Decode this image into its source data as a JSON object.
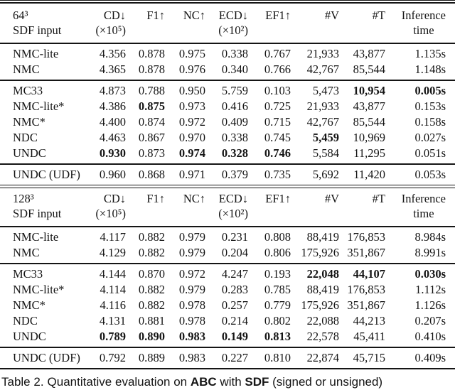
{
  "colors": {
    "background": "#ffffff",
    "text": "#141414",
    "rule": "#151515"
  },
  "tables": [
    {
      "name": "abc-sdf-64",
      "corner": {
        "resolution": "64³",
        "input": "SDF input"
      },
      "columns": [
        {
          "top": "CD↓",
          "sub": "(×10⁵)"
        },
        {
          "top": "F1↑",
          "sub": ""
        },
        {
          "top": "NC↑",
          "sub": ""
        },
        {
          "top": "ECD↓",
          "sub": "(×10²)"
        },
        {
          "top": "EF1↑",
          "sub": ""
        },
        {
          "top": "#V",
          "sub": ""
        },
        {
          "top": "#T",
          "sub": ""
        },
        {
          "top": "Inference",
          "sub": "time",
          "sub_center": true
        }
      ],
      "groups": [
        {
          "rows": [
            {
              "label": "NMC-lite",
              "values": [
                "4.356",
                "0.878",
                "0.975",
                "0.338",
                "0.767",
                "21,933",
                "43,877",
                "1.135s"
              ],
              "bold": []
            },
            {
              "label": "NMC",
              "values": [
                "4.365",
                "0.878",
                "0.976",
                "0.340",
                "0.766",
                "42,767",
                "85,544",
                "1.148s"
              ],
              "bold": []
            }
          ]
        },
        {
          "rows": [
            {
              "label": "MC33",
              "values": [
                "4.873",
                "0.788",
                "0.950",
                "5.759",
                "0.103",
                "5,473",
                "10,954",
                "0.005s"
              ],
              "bold": [
                6,
                7
              ]
            },
            {
              "label": "NMC-lite*",
              "values": [
                "4.386",
                "0.875",
                "0.973",
                "0.416",
                "0.725",
                "21,933",
                "43,877",
                "0.153s"
              ],
              "bold": [
                1
              ]
            },
            {
              "label": "NMC*",
              "values": [
                "4.400",
                "0.874",
                "0.972",
                "0.409",
                "0.715",
                "42,767",
                "85,544",
                "0.158s"
              ],
              "bold": []
            },
            {
              "label": "NDC",
              "values": [
                "4.463",
                "0.867",
                "0.970",
                "0.338",
                "0.745",
                "5,459",
                "10,969",
                "0.027s"
              ],
              "bold": [
                5
              ]
            },
            {
              "label": "UNDC",
              "values": [
                "0.930",
                "0.873",
                "0.974",
                "0.328",
                "0.746",
                "5,584",
                "11,295",
                "0.051s"
              ],
              "bold": [
                0,
                2,
                3,
                4
              ]
            }
          ]
        },
        {
          "rows": [
            {
              "label": "UNDC (UDF)",
              "values": [
                "0.960",
                "0.868",
                "0.971",
                "0.379",
                "0.735",
                "5,692",
                "11,420",
                "0.053s"
              ],
              "bold": []
            }
          ]
        }
      ]
    },
    {
      "name": "abc-sdf-128",
      "corner": {
        "resolution": "128³",
        "input": "SDF input"
      },
      "columns": [
        {
          "top": "CD↓",
          "sub": "(×10⁵)"
        },
        {
          "top": "F1↑",
          "sub": ""
        },
        {
          "top": "NC↑",
          "sub": ""
        },
        {
          "top": "ECD↓",
          "sub": "(×10²)"
        },
        {
          "top": "EF1↑",
          "sub": ""
        },
        {
          "top": "#V",
          "sub": ""
        },
        {
          "top": "#T",
          "sub": ""
        },
        {
          "top": "Inference",
          "sub": "time",
          "sub_center": true
        }
      ],
      "groups": [
        {
          "rows": [
            {
              "label": "NMC-lite",
              "values": [
                "4.117",
                "0.882",
                "0.979",
                "0.231",
                "0.808",
                "88,419",
                "176,853",
                "8.984s"
              ],
              "bold": []
            },
            {
              "label": "NMC",
              "values": [
                "4.129",
                "0.882",
                "0.979",
                "0.204",
                "0.806",
                "175,926",
                "351,867",
                "8.991s"
              ],
              "bold": []
            }
          ]
        },
        {
          "rows": [
            {
              "label": "MC33",
              "values": [
                "4.144",
                "0.870",
                "0.972",
                "4.247",
                "0.193",
                "22,048",
                "44,107",
                "0.030s"
              ],
              "bold": [
                5,
                6,
                7
              ]
            },
            {
              "label": "NMC-lite*",
              "values": [
                "4.114",
                "0.882",
                "0.979",
                "0.283",
                "0.785",
                "88,419",
                "176,853",
                "1.112s"
              ],
              "bold": []
            },
            {
              "label": "NMC*",
              "values": [
                "4.116",
                "0.882",
                "0.978",
                "0.257",
                "0.779",
                "175,926",
                "351,867",
                "1.126s"
              ],
              "bold": []
            },
            {
              "label": "NDC",
              "values": [
                "4.131",
                "0.881",
                "0.978",
                "0.214",
                "0.802",
                "22,088",
                "44,213",
                "0.207s"
              ],
              "bold": []
            },
            {
              "label": "UNDC",
              "values": [
                "0.789",
                "0.890",
                "0.983",
                "0.149",
                "0.813",
                "22,578",
                "45,411",
                "0.410s"
              ],
              "bold": [
                0,
                1,
                2,
                3,
                4
              ]
            }
          ]
        },
        {
          "rows": [
            {
              "label": "UNDC (UDF)",
              "values": [
                "0.792",
                "0.889",
                "0.983",
                "0.227",
                "0.810",
                "22,874",
                "45,715",
                "0.409s"
              ],
              "bold": []
            }
          ]
        }
      ]
    }
  ],
  "caption": {
    "label": "Table 2.",
    "seg1": "Quantitative evaluation on ",
    "bold1": "ABC",
    "seg2": " with ",
    "bold2": "SDF",
    "seg3": " (signed or unsigned)"
  }
}
